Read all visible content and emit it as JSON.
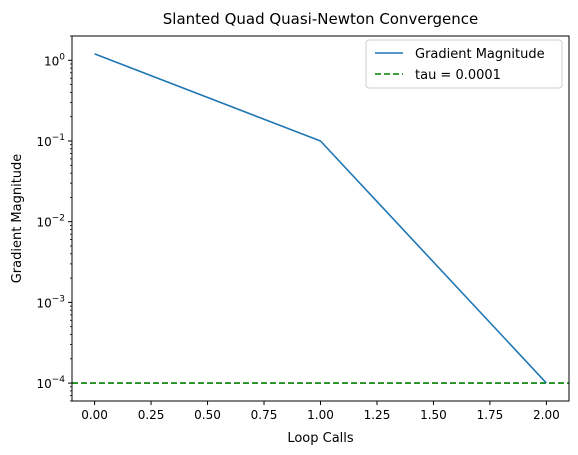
{
  "chart_data": {
    "type": "line",
    "title": "Slanted Quad Quasi-Newton Convergence",
    "xlabel": "Loop Calls",
    "ylabel": "Gradient Magnitude",
    "yscale": "log",
    "xlim": [
      -0.1,
      2.1
    ],
    "ylim": [
      6e-05,
      2.0
    ],
    "x_ticks": [
      0.0,
      0.25,
      0.5,
      0.75,
      1.0,
      1.25,
      1.5,
      1.75,
      2.0
    ],
    "x_tick_labels": [
      "0.00",
      "0.25",
      "0.50",
      "0.75",
      "1.00",
      "1.25",
      "1.50",
      "1.75",
      "2.00"
    ],
    "y_ticks": [
      0.0001,
      0.001,
      0.01,
      0.1,
      1
    ],
    "y_tick_bases": [
      "10",
      "10",
      "10",
      "10",
      "10"
    ],
    "y_tick_exps": [
      "−4",
      "−3",
      "−2",
      "−1",
      "0"
    ],
    "grid": false,
    "legend_position": "top-right",
    "series": [
      {
        "name": "Gradient Magnitude",
        "color": "#1f77b4",
        "style": "solid",
        "x": [
          0,
          1,
          2
        ],
        "y": [
          1.2,
          0.1,
          0.0001
        ]
      }
    ],
    "hlines": [
      {
        "name": "tau = 0.0001",
        "y": 0.0001,
        "color": "#008000",
        "style": "dashed"
      }
    ]
  }
}
